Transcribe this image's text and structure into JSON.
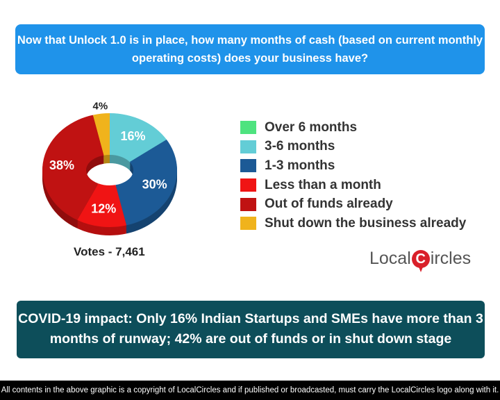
{
  "title": "Now that Unlock 1.0 is in place, how many months of cash (based on current monthly operating costs) does your business have?",
  "chart_data": {
    "type": "pie",
    "style": "3d-donut",
    "categories": [
      "Over 6 months",
      "3-6 months",
      "1-3 months",
      "Less than a month",
      "Out of funds already",
      "Shut down the business already"
    ],
    "values": [
      0,
      16,
      30,
      12,
      38,
      4
    ],
    "labels": [
      "",
      "16%",
      "30%",
      "12%",
      "38%",
      "4%"
    ],
    "colors": [
      "#4ee37f",
      "#63cdd6",
      "#1c5a96",
      "#f01414",
      "#c01212",
      "#f0b31c"
    ],
    "legend_position": "right"
  },
  "votes": "Votes - 7,461",
  "logo": {
    "left": "Local",
    "mark": "C",
    "right": "ircles"
  },
  "headline": "COVID-19 impact: Only 16% Indian Startups and SMEs have more than 3 months of runway; 42% are out of funds or in shut down stage",
  "footer": "All contents in the above graphic is a copyright of LocalCircles and if published or broadcasted, must carry the LocalCircles logo along with it."
}
